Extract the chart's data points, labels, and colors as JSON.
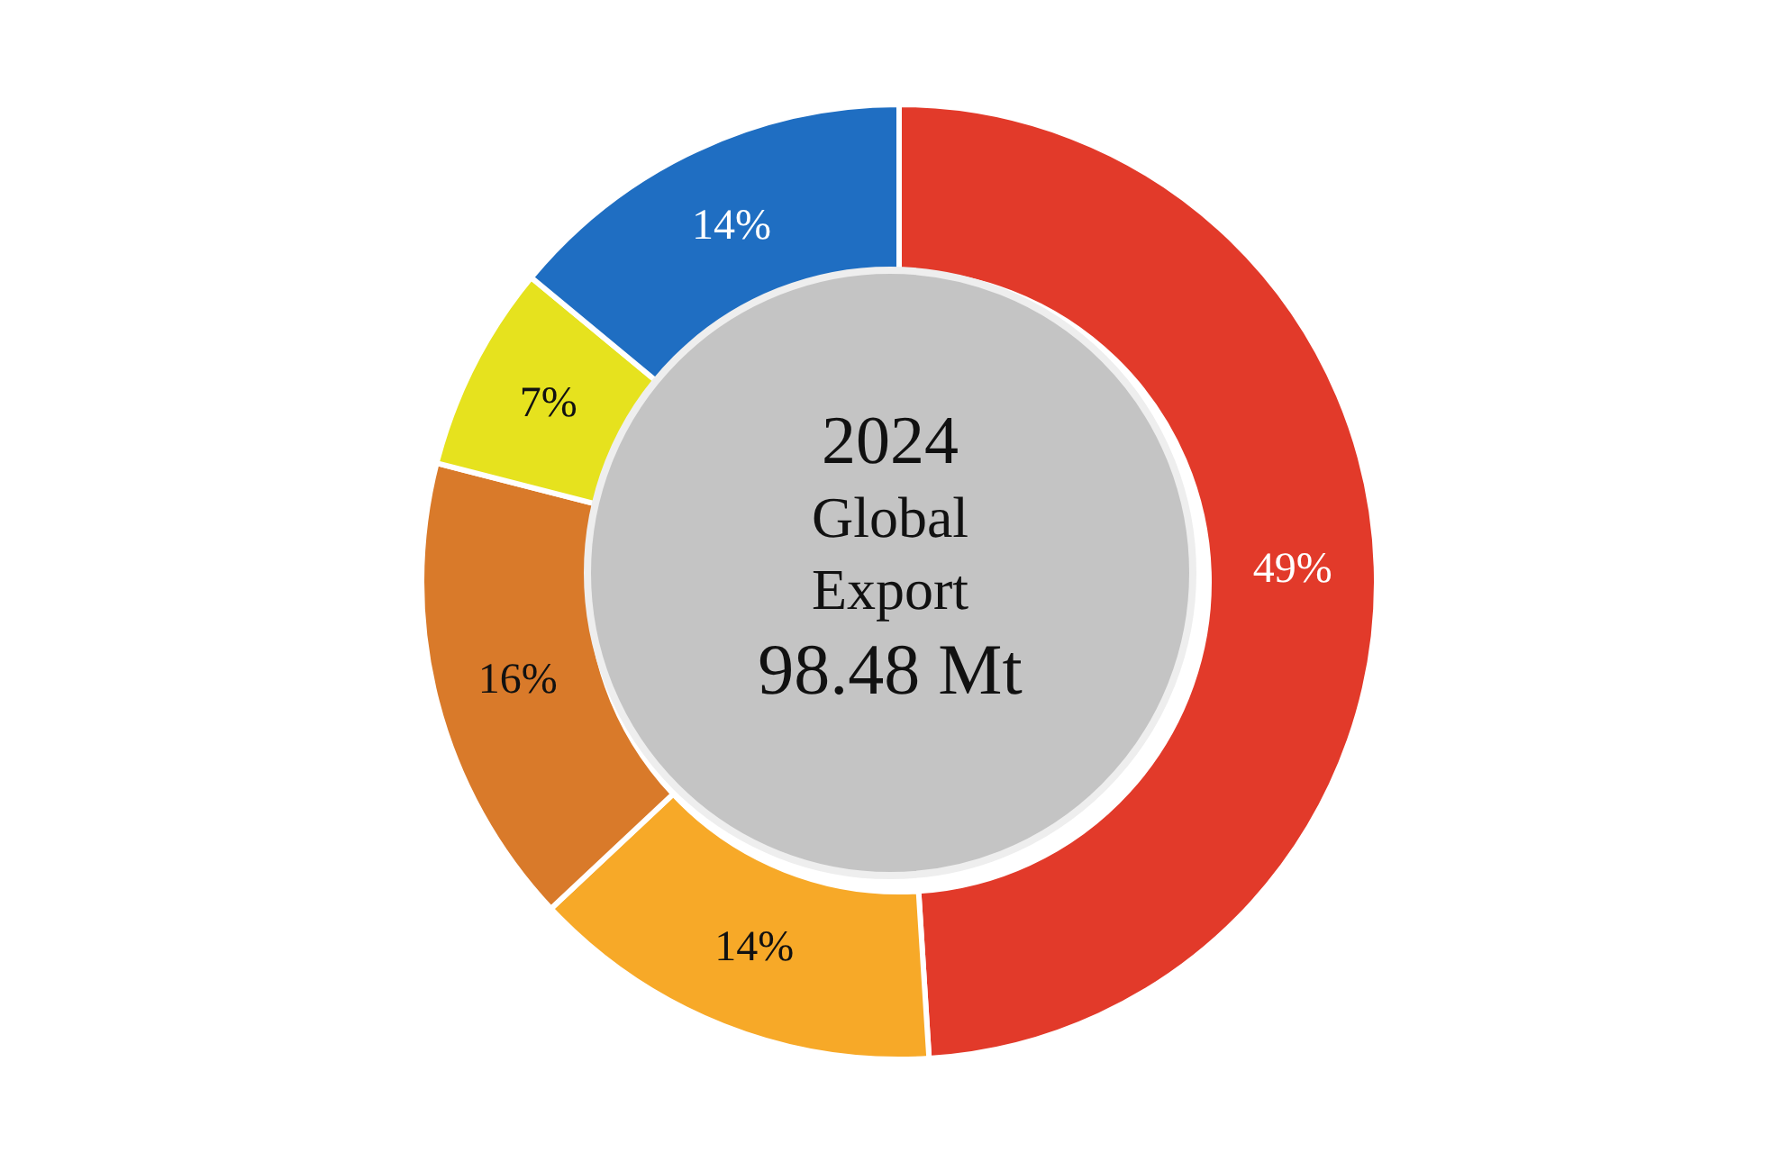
{
  "chart_data": {
    "type": "donut",
    "title": "2024",
    "subtitle": "Global Export",
    "annotations": [
      "98.48 Mt"
    ],
    "categories": [
      null,
      null,
      null,
      null,
      null
    ],
    "values": [
      49,
      14,
      16,
      7,
      14
    ],
    "colors": [
      "#e23a2a",
      "#f7a928",
      "#d97a2a",
      "#e6e21e",
      "#1f6ec2"
    ],
    "value_labels": [
      "49%",
      "14%",
      "16%",
      "7%",
      "14%"
    ]
  }
}
